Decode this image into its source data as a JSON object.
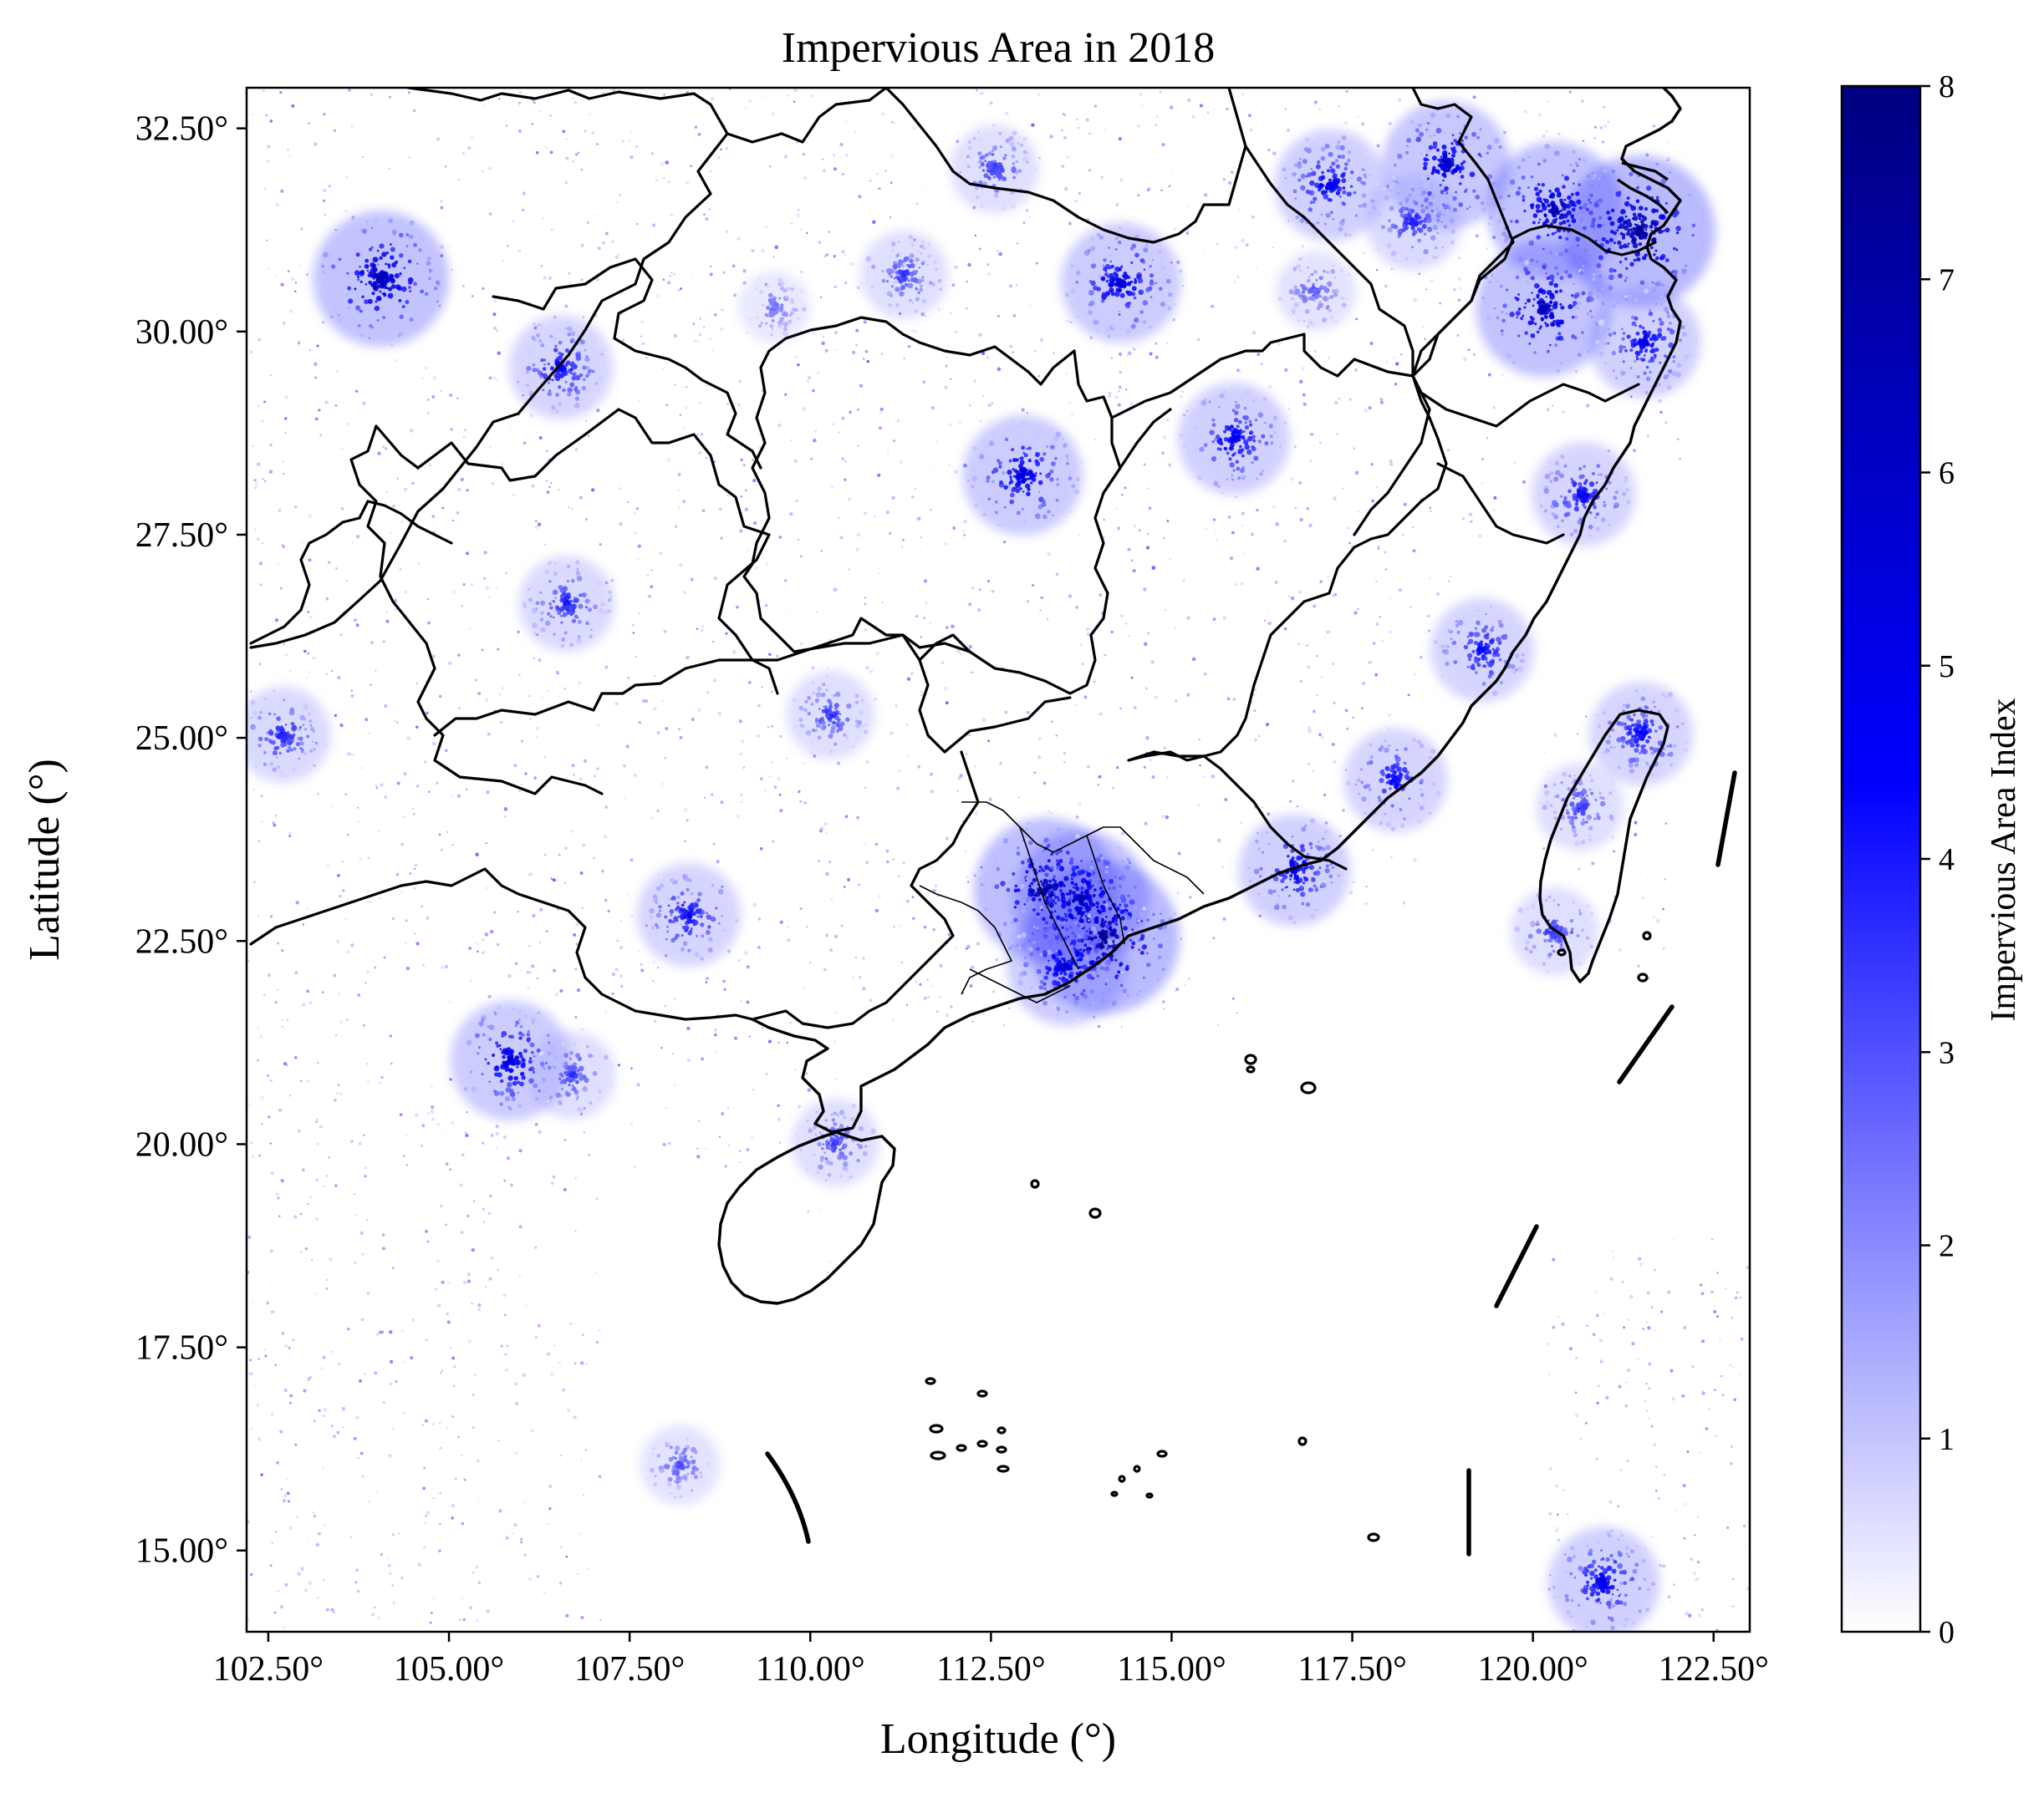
{
  "title": "Impervious Area in 2018",
  "xlabel": "Longitude (°)",
  "ylabel": "Latitude (°)",
  "x_ticks": [
    "102.50°",
    "105.00°",
    "107.50°",
    "110.00°",
    "112.50°",
    "115.00°",
    "117.50°",
    "120.00°",
    "122.50°"
  ],
  "y_ticks": [
    "32.50°",
    "30.00°",
    "27.50°",
    "25.00°",
    "22.50°",
    "20.00°",
    "17.50°",
    "15.00°"
  ],
  "colorbar": {
    "label": "Impervious Area Index",
    "ticks": [
      "0",
      "1",
      "2",
      "3",
      "4",
      "5",
      "6",
      "7",
      "8"
    ],
    "range": [
      0,
      8
    ],
    "colors": [
      "#ffffff",
      "#0000ff",
      "#000080"
    ]
  },
  "map": {
    "extent": {
      "lon_min": 102.2,
      "lon_max": 123.0,
      "lat_min": 14.0,
      "lat_max": 33.0
    },
    "x_tick_values": [
      102.5,
      105.0,
      107.5,
      110.0,
      112.5,
      115.0,
      117.5,
      120.0,
      122.5
    ],
    "y_tick_values": [
      32.5,
      30.0,
      27.5,
      25.0,
      22.5,
      20.0,
      17.5,
      15.0
    ],
    "layer": "impervious area index (0–8)",
    "boundary_color": "#000000",
    "hotspots": [
      {
        "lon": 104.06,
        "lat": 30.65,
        "value": 6.5
      },
      {
        "lon": 106.55,
        "lat": 29.56,
        "value": 4.5
      },
      {
        "lon": 114.3,
        "lat": 30.6,
        "value": 5.5
      },
      {
        "lon": 117.2,
        "lat": 31.8,
        "value": 5.0
      },
      {
        "lon": 118.8,
        "lat": 32.05,
        "value": 6.0
      },
      {
        "lon": 120.3,
        "lat": 31.5,
        "value": 6.5
      },
      {
        "lon": 121.47,
        "lat": 31.23,
        "value": 7.5
      },
      {
        "lon": 120.15,
        "lat": 30.28,
        "value": 6.5
      },
      {
        "lon": 121.55,
        "lat": 29.87,
        "value": 5.0
      },
      {
        "lon": 120.7,
        "lat": 28.0,
        "value": 4.5
      },
      {
        "lon": 112.94,
        "lat": 28.23,
        "value": 5.5
      },
      {
        "lon": 115.86,
        "lat": 28.68,
        "value": 5.0
      },
      {
        "lon": 119.3,
        "lat": 26.08,
        "value": 4.5
      },
      {
        "lon": 118.1,
        "lat": 24.48,
        "value": 4.5
      },
      {
        "lon": 113.26,
        "lat": 23.13,
        "value": 7.0
      },
      {
        "lon": 114.06,
        "lat": 22.54,
        "value": 7.5
      },
      {
        "lon": 113.75,
        "lat": 23.02,
        "value": 6.5
      },
      {
        "lon": 113.55,
        "lat": 22.2,
        "value": 5.5
      },
      {
        "lon": 116.7,
        "lat": 23.37,
        "value": 5.0
      },
      {
        "lon": 108.32,
        "lat": 22.82,
        "value": 4.5
      },
      {
        "lon": 110.28,
        "lat": 25.28,
        "value": 3.5
      },
      {
        "lon": 106.63,
        "lat": 26.65,
        "value": 4.0
      },
      {
        "lon": 102.7,
        "lat": 25.04,
        "value": 4.0
      },
      {
        "lon": 105.85,
        "lat": 21.03,
        "value": 5.5
      },
      {
        "lon": 106.7,
        "lat": 20.85,
        "value": 3.5
      },
      {
        "lon": 121.5,
        "lat": 25.05,
        "value": 4.5
      },
      {
        "lon": 120.65,
        "lat": 24.15,
        "value": 3.5
      },
      {
        "lon": 120.3,
        "lat": 22.62,
        "value": 3.5
      },
      {
        "lon": 110.35,
        "lat": 20.02,
        "value": 3.5
      },
      {
        "lon": 120.98,
        "lat": 14.6,
        "value": 5.0
      },
      {
        "lon": 108.2,
        "lat": 16.05,
        "value": 3.0
      },
      {
        "lon": 112.55,
        "lat": 32.0,
        "value": 3.5
      },
      {
        "lon": 111.3,
        "lat": 30.7,
        "value": 3.5
      },
      {
        "lon": 109.5,
        "lat": 30.3,
        "value": 2.5
      },
      {
        "lon": 117.0,
        "lat": 30.5,
        "value": 3.0
      },
      {
        "lon": 118.35,
        "lat": 31.35,
        "value": 4.0
      }
    ]
  }
}
